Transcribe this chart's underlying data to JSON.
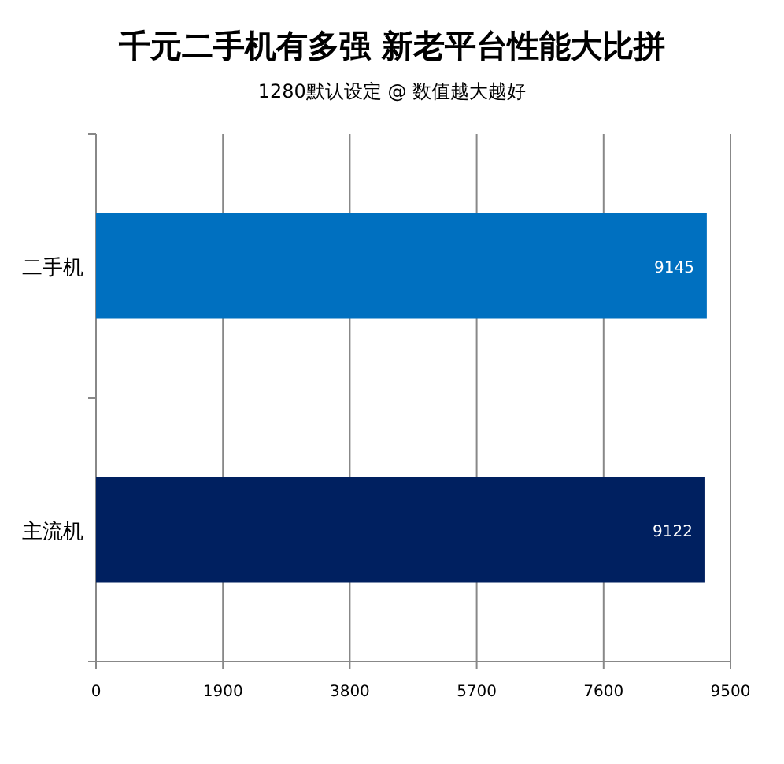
{
  "chart_data": {
    "type": "bar",
    "orientation": "horizontal",
    "title": "千元二手机有多强 新老平台性能大比拼",
    "subtitle": "1280默认设定 @ 数值越大越好",
    "categories": [
      "二手机",
      "主流机"
    ],
    "values": [
      9145,
      9122
    ],
    "colors": [
      "#0070c0",
      "#002060"
    ],
    "xlim": [
      0,
      9500
    ],
    "xticks": [
      0,
      1900,
      3800,
      5700,
      7600,
      9500
    ],
    "grid": "x",
    "data_labels": true
  }
}
